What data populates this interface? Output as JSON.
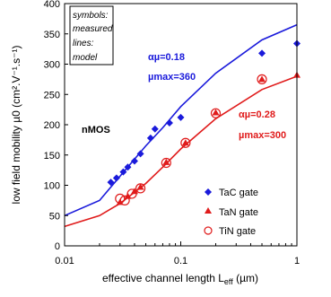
{
  "chart_data": {
    "type": "scatter",
    "xlabel": "effective channel length L",
    "xlabel_sub": "eff",
    "xlabel_unit": " (µm)",
    "ylabel": "low field mobility µ0 (cm².V⁻¹.s⁻¹)",
    "xscale": "log",
    "xlim": [
      0.01,
      1
    ],
    "ylim": [
      0,
      400
    ],
    "x_ticks": [
      "0.01",
      "0.1",
      "1"
    ],
    "y_ticks": [
      "0",
      "50",
      "100",
      "150",
      "200",
      "250",
      "300",
      "350",
      "400"
    ],
    "note_lines": [
      "symbols:",
      "measured",
      "lines:",
      "model"
    ],
    "device_label": "nMOS",
    "colors": {
      "blue": "#1a1adb",
      "red": "#e01b1b"
    },
    "annotations": [
      {
        "alpha": "αµ=0.18",
        "mu": "µmax=360",
        "color": "#1a1adb"
      },
      {
        "alpha": "αµ=0.28",
        "mu": "µmax=300",
        "color": "#e01b1b"
      }
    ],
    "series": [
      {
        "name": "TaC gate",
        "marker": "diamond",
        "color": "#1a1adb",
        "x": [
          0.025,
          0.028,
          0.032,
          0.035,
          0.04,
          0.045,
          0.055,
          0.06,
          0.08,
          0.1,
          0.5,
          1.0
        ],
        "y": [
          105,
          112,
          122,
          130,
          140,
          152,
          178,
          193,
          203,
          212,
          318,
          334
        ]
      },
      {
        "name": "TaN gate",
        "marker": "triangle",
        "color": "#e01b1b",
        "x": [
          0.03,
          0.035,
          0.04,
          0.045,
          0.075,
          0.11,
          0.2,
          0.5,
          1.0
        ],
        "y": [
          72,
          82,
          90,
          97,
          138,
          170,
          220,
          275,
          282
        ]
      },
      {
        "name": "TiN gate",
        "marker": "circle-open",
        "color": "#e01b1b",
        "x": [
          0.03,
          0.033,
          0.038,
          0.045,
          0.075,
          0.11,
          0.2,
          0.5
        ],
        "y": [
          78,
          75,
          86,
          95,
          137,
          170,
          219,
          275
        ]
      }
    ],
    "model_lines": [
      {
        "color": "#1a1adb",
        "x": [
          0.01,
          0.02,
          0.03,
          0.05,
          0.07,
          0.1,
          0.2,
          0.5,
          1.0
        ],
        "y": [
          50,
          75,
          115,
          165,
          195,
          230,
          285,
          340,
          365
        ]
      },
      {
        "color": "#e01b1b",
        "x": [
          0.01,
          0.02,
          0.03,
          0.05,
          0.07,
          0.1,
          0.2,
          0.5,
          1.0
        ],
        "y": [
          32,
          50,
          70,
          103,
          130,
          160,
          210,
          258,
          280
        ]
      }
    ]
  }
}
